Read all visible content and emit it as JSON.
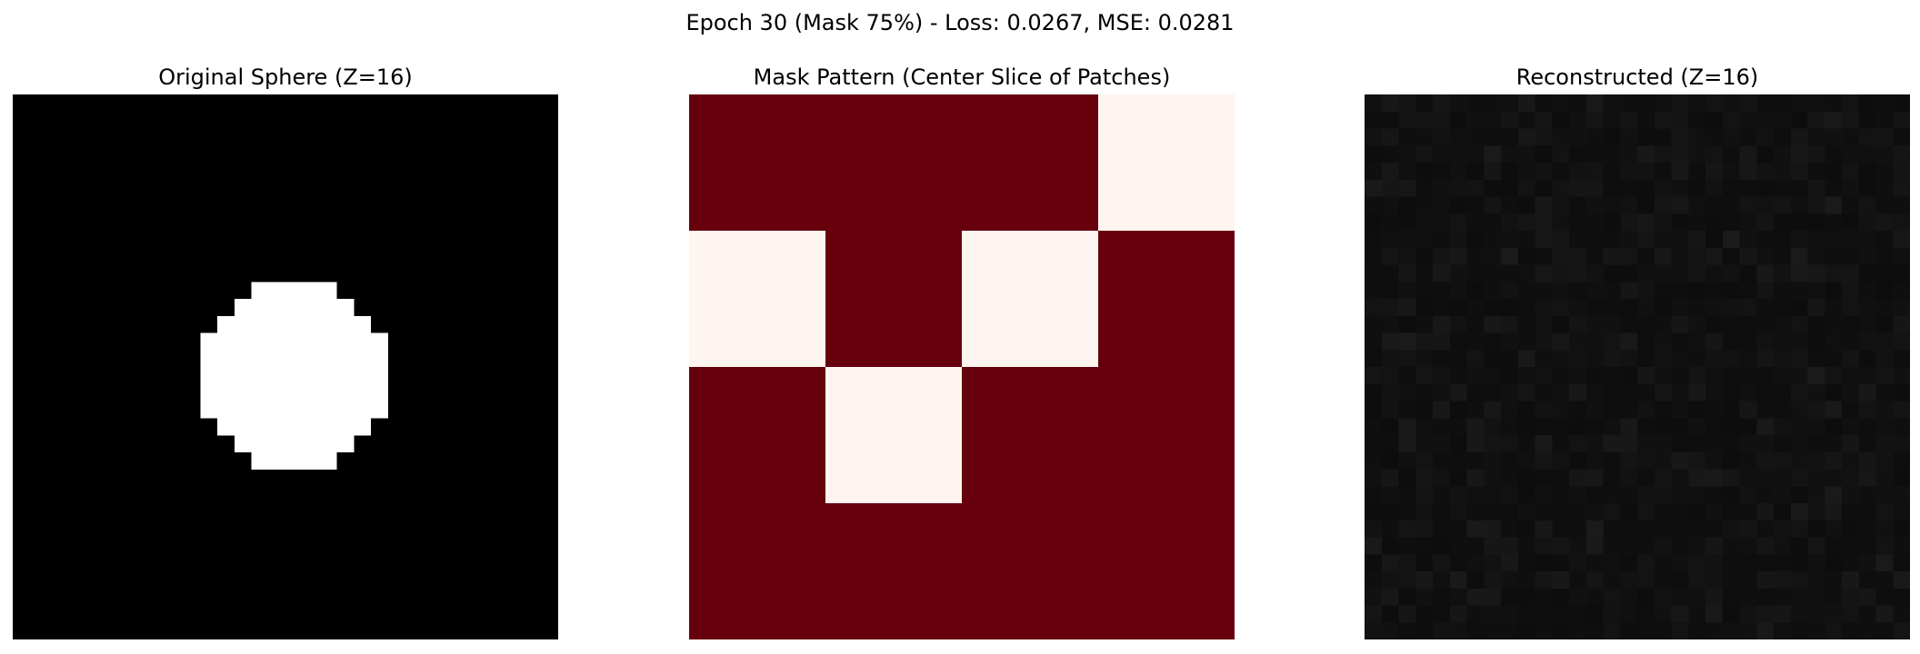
{
  "figure": {
    "suptitle": "Epoch 30 (Mask 75%) - Loss: 0.0267, MSE: 0.0281"
  },
  "chart_data": [
    {
      "type": "heatmap",
      "title": "Original Sphere (Z=16)",
      "grid_size": [
        32,
        32
      ],
      "colormap": "gray",
      "axes_visible": false,
      "object": {
        "shape": "circle",
        "center": [
          16,
          16
        ],
        "radius": 5.5,
        "value": 1,
        "background": 0
      }
    },
    {
      "type": "heatmap",
      "title": "Mask Pattern (Center Slice of Patches)",
      "grid_size": [
        4,
        4
      ],
      "colormap": "Reds",
      "colors": {
        "masked": "#67000d",
        "visible": "#fff5f0"
      },
      "axes_visible": false,
      "values": [
        [
          1,
          1,
          1,
          0
        ],
        [
          0,
          1,
          0,
          1
        ],
        [
          1,
          0,
          1,
          1
        ],
        [
          1,
          1,
          1,
          1
        ]
      ]
    },
    {
      "type": "heatmap",
      "title": "Reconstructed (Z=16)",
      "grid_size": [
        32,
        32
      ],
      "colormap": "gray",
      "axes_visible": false,
      "value_range": [
        0.02,
        0.11
      ],
      "description_of_values": "near-uniform dark noise"
    }
  ]
}
